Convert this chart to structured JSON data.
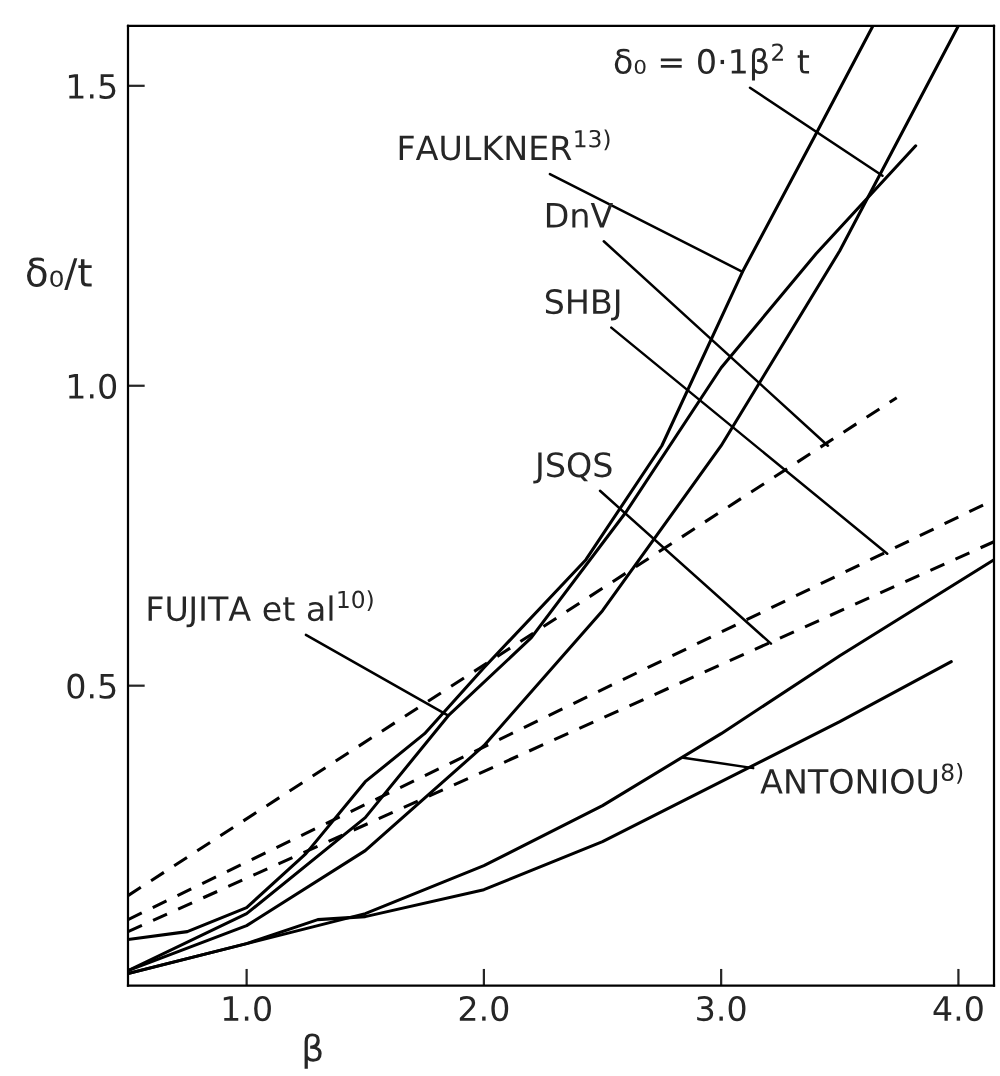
{
  "chart_data": {
    "type": "line",
    "xlabel": "β",
    "ylabel": "δ₀/t",
    "xlim": [
      0.5,
      4.15
    ],
    "ylim": [
      0,
      1.6
    ],
    "xticks": [
      {
        "value": 1,
        "label": "1.0"
      },
      {
        "value": 2,
        "label": "2.0"
      },
      {
        "value": 3,
        "label": "3.0"
      },
      {
        "value": 4,
        "label": "4.0"
      }
    ],
    "yticks": [
      {
        "value": 0.5,
        "label": "0.5"
      },
      {
        "value": 1.0,
        "label": "1.0"
      },
      {
        "value": 1.5,
        "label": "1.5"
      }
    ],
    "grid": false,
    "legend": false,
    "marker": "none",
    "series": [
      {
        "color": "#000000",
        "line_style": "solid",
        "x": [
          0.5,
          1.0,
          1.5,
          2.0,
          2.5,
          3.0,
          3.5,
          4.0
        ],
        "values": [
          0.025,
          0.1,
          0.225,
          0.4,
          0.625,
          0.9,
          1.225,
          1.6
        ]
      },
      {
        "color": "#000000",
        "line_style": "solid",
        "x": [
          0.5,
          0.75,
          1.0,
          1.25,
          1.5,
          1.75,
          2.0,
          2.43,
          2.75,
          3.09,
          3.4,
          3.64
        ],
        "values": [
          0.077,
          0.09,
          0.13,
          0.22,
          0.34,
          0.42,
          0.53,
          0.71,
          0.9,
          1.19,
          1.42,
          1.6
        ]
      },
      {
        "color": "#000000",
        "line_style": "solid",
        "x": [
          0.5,
          1.0,
          1.5,
          1.85,
          2.2,
          2.6,
          3.0,
          3.4,
          3.82
        ],
        "values": [
          0.025,
          0.12,
          0.28,
          0.45,
          0.58,
          0.79,
          1.03,
          1.22,
          1.4
        ]
      },
      {
        "color": "#000000",
        "line_style": "dashed",
        "x": [
          0.5,
          3.74
        ],
        "values": [
          0.15,
          0.98
        ]
      },
      {
        "color": "#000000",
        "line_style": "dashed",
        "x": [
          0.5,
          4.15
        ],
        "values": [
          0.11,
          0.81
        ]
      },
      {
        "color": "#000000",
        "line_style": "dashed",
        "x": [
          0.5,
          4.15
        ],
        "values": [
          0.09,
          0.74
        ]
      },
      {
        "color": "#000000",
        "line_style": "solid",
        "x": [
          0.5,
          1.0,
          1.3,
          1.5,
          2.0,
          2.5,
          3.0,
          3.5,
          3.97
        ],
        "values": [
          0.02,
          0.07,
          0.11,
          0.115,
          0.16,
          0.24,
          0.34,
          0.44,
          0.54
        ]
      },
      {
        "color": "#000000",
        "line_style": "solid",
        "x": [
          0.5,
          1.0,
          1.5,
          2.0,
          2.5,
          3.0,
          3.5,
          4.15
        ],
        "values": [
          0.02,
          0.07,
          0.12,
          0.2,
          0.3,
          0.42,
          0.55,
          0.71
        ]
      }
    ],
    "annotations": [
      {
        "text": "δ₀ = 0·1β$^{2}$ t",
        "x": 3.68,
        "y": 1.35
      },
      {
        "text": "FAULKNER$^{13)}$",
        "x": 3.09,
        "y": 1.19
      },
      {
        "text": "DnV",
        "x": 3.45,
        "y": 0.9
      },
      {
        "text": "SHBJ",
        "x": 3.7,
        "y": 0.72
      },
      {
        "text": "JSQS",
        "x": 3.21,
        "y": 0.57
      },
      {
        "text": "FUJITA et al$^{10)}$",
        "x": 1.85,
        "y": 0.45
      },
      {
        "text": "ANTONIOU$^{8)}$",
        "x": 2.84,
        "y": 0.38
      }
    ]
  }
}
